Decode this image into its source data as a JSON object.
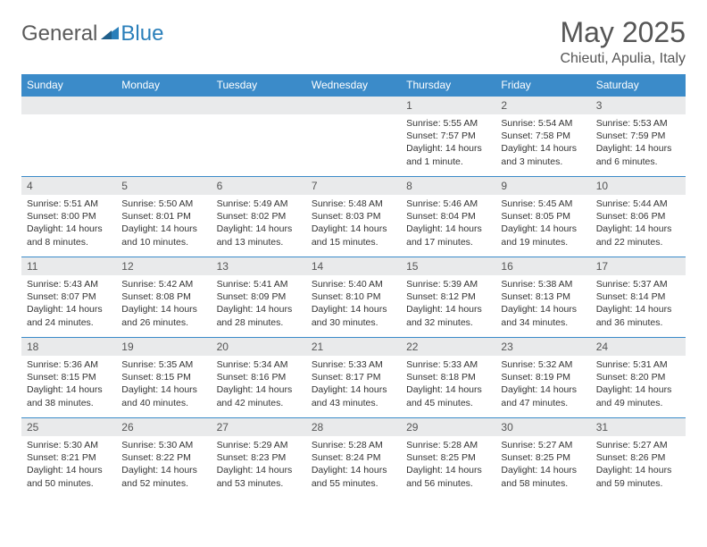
{
  "logo": {
    "part1": "General",
    "part2": "Blue"
  },
  "title": "May 2025",
  "location": "Chieuti, Apulia, Italy",
  "header_color": "#3b8bc9",
  "daynum_bg": "#e9eaeb",
  "weekdays": [
    "Sunday",
    "Monday",
    "Tuesday",
    "Wednesday",
    "Thursday",
    "Friday",
    "Saturday"
  ],
  "weeks": [
    [
      null,
      null,
      null,
      null,
      {
        "n": "1",
        "sr": "Sunrise: 5:55 AM",
        "ss": "Sunset: 7:57 PM",
        "dl": "Daylight: 14 hours and 1 minute."
      },
      {
        "n": "2",
        "sr": "Sunrise: 5:54 AM",
        "ss": "Sunset: 7:58 PM",
        "dl": "Daylight: 14 hours and 3 minutes."
      },
      {
        "n": "3",
        "sr": "Sunrise: 5:53 AM",
        "ss": "Sunset: 7:59 PM",
        "dl": "Daylight: 14 hours and 6 minutes."
      }
    ],
    [
      {
        "n": "4",
        "sr": "Sunrise: 5:51 AM",
        "ss": "Sunset: 8:00 PM",
        "dl": "Daylight: 14 hours and 8 minutes."
      },
      {
        "n": "5",
        "sr": "Sunrise: 5:50 AM",
        "ss": "Sunset: 8:01 PM",
        "dl": "Daylight: 14 hours and 10 minutes."
      },
      {
        "n": "6",
        "sr": "Sunrise: 5:49 AM",
        "ss": "Sunset: 8:02 PM",
        "dl": "Daylight: 14 hours and 13 minutes."
      },
      {
        "n": "7",
        "sr": "Sunrise: 5:48 AM",
        "ss": "Sunset: 8:03 PM",
        "dl": "Daylight: 14 hours and 15 minutes."
      },
      {
        "n": "8",
        "sr": "Sunrise: 5:46 AM",
        "ss": "Sunset: 8:04 PM",
        "dl": "Daylight: 14 hours and 17 minutes."
      },
      {
        "n": "9",
        "sr": "Sunrise: 5:45 AM",
        "ss": "Sunset: 8:05 PM",
        "dl": "Daylight: 14 hours and 19 minutes."
      },
      {
        "n": "10",
        "sr": "Sunrise: 5:44 AM",
        "ss": "Sunset: 8:06 PM",
        "dl": "Daylight: 14 hours and 22 minutes."
      }
    ],
    [
      {
        "n": "11",
        "sr": "Sunrise: 5:43 AM",
        "ss": "Sunset: 8:07 PM",
        "dl": "Daylight: 14 hours and 24 minutes."
      },
      {
        "n": "12",
        "sr": "Sunrise: 5:42 AM",
        "ss": "Sunset: 8:08 PM",
        "dl": "Daylight: 14 hours and 26 minutes."
      },
      {
        "n": "13",
        "sr": "Sunrise: 5:41 AM",
        "ss": "Sunset: 8:09 PM",
        "dl": "Daylight: 14 hours and 28 minutes."
      },
      {
        "n": "14",
        "sr": "Sunrise: 5:40 AM",
        "ss": "Sunset: 8:10 PM",
        "dl": "Daylight: 14 hours and 30 minutes."
      },
      {
        "n": "15",
        "sr": "Sunrise: 5:39 AM",
        "ss": "Sunset: 8:12 PM",
        "dl": "Daylight: 14 hours and 32 minutes."
      },
      {
        "n": "16",
        "sr": "Sunrise: 5:38 AM",
        "ss": "Sunset: 8:13 PM",
        "dl": "Daylight: 14 hours and 34 minutes."
      },
      {
        "n": "17",
        "sr": "Sunrise: 5:37 AM",
        "ss": "Sunset: 8:14 PM",
        "dl": "Daylight: 14 hours and 36 minutes."
      }
    ],
    [
      {
        "n": "18",
        "sr": "Sunrise: 5:36 AM",
        "ss": "Sunset: 8:15 PM",
        "dl": "Daylight: 14 hours and 38 minutes."
      },
      {
        "n": "19",
        "sr": "Sunrise: 5:35 AM",
        "ss": "Sunset: 8:15 PM",
        "dl": "Daylight: 14 hours and 40 minutes."
      },
      {
        "n": "20",
        "sr": "Sunrise: 5:34 AM",
        "ss": "Sunset: 8:16 PM",
        "dl": "Daylight: 14 hours and 42 minutes."
      },
      {
        "n": "21",
        "sr": "Sunrise: 5:33 AM",
        "ss": "Sunset: 8:17 PM",
        "dl": "Daylight: 14 hours and 43 minutes."
      },
      {
        "n": "22",
        "sr": "Sunrise: 5:33 AM",
        "ss": "Sunset: 8:18 PM",
        "dl": "Daylight: 14 hours and 45 minutes."
      },
      {
        "n": "23",
        "sr": "Sunrise: 5:32 AM",
        "ss": "Sunset: 8:19 PM",
        "dl": "Daylight: 14 hours and 47 minutes."
      },
      {
        "n": "24",
        "sr": "Sunrise: 5:31 AM",
        "ss": "Sunset: 8:20 PM",
        "dl": "Daylight: 14 hours and 49 minutes."
      }
    ],
    [
      {
        "n": "25",
        "sr": "Sunrise: 5:30 AM",
        "ss": "Sunset: 8:21 PM",
        "dl": "Daylight: 14 hours and 50 minutes."
      },
      {
        "n": "26",
        "sr": "Sunrise: 5:30 AM",
        "ss": "Sunset: 8:22 PM",
        "dl": "Daylight: 14 hours and 52 minutes."
      },
      {
        "n": "27",
        "sr": "Sunrise: 5:29 AM",
        "ss": "Sunset: 8:23 PM",
        "dl": "Daylight: 14 hours and 53 minutes."
      },
      {
        "n": "28",
        "sr": "Sunrise: 5:28 AM",
        "ss": "Sunset: 8:24 PM",
        "dl": "Daylight: 14 hours and 55 minutes."
      },
      {
        "n": "29",
        "sr": "Sunrise: 5:28 AM",
        "ss": "Sunset: 8:25 PM",
        "dl": "Daylight: 14 hours and 56 minutes."
      },
      {
        "n": "30",
        "sr": "Sunrise: 5:27 AM",
        "ss": "Sunset: 8:25 PM",
        "dl": "Daylight: 14 hours and 58 minutes."
      },
      {
        "n": "31",
        "sr": "Sunrise: 5:27 AM",
        "ss": "Sunset: 8:26 PM",
        "dl": "Daylight: 14 hours and 59 minutes."
      }
    ]
  ]
}
